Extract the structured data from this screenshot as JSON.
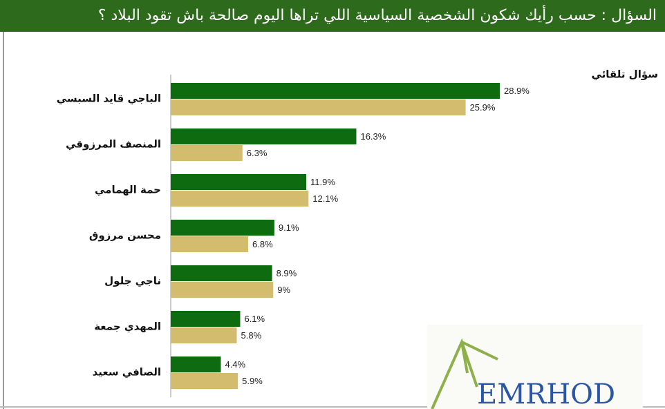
{
  "chart_data": {
    "type": "hbar",
    "title": "السؤال : حسب رأيك شكون الشخصية  السياسية اللي تراها اليوم صالحة باش تقود البلاد ؟",
    "subtitle": "سؤال تلقائي",
    "categories": [
      "الباجي قايد السبسي",
      "المنصف المرزوقي",
      "حمة الهمامي",
      "محسن مرزوق",
      "ناجي جلول",
      "المهدي جمعة",
      "الصافي سعيد"
    ],
    "series": [
      {
        "color": "#0f6b0f",
        "values": [
          28.9,
          16.3,
          11.9,
          9.1,
          8.9,
          6.1,
          4.4
        ],
        "value_labels": [
          "28.9%",
          "16.3%",
          "11.9%",
          "9.1%",
          "8.9%",
          "6.1%",
          "4.4%"
        ]
      },
      {
        "color": "#d4bc6e",
        "values": [
          25.9,
          6.3,
          12.1,
          6.8,
          9,
          5.8,
          5.9
        ],
        "value_labels": [
          "25.9%",
          "6.3%",
          "12.1%",
          "6.8%",
          "9%",
          "5.8%",
          "5.9%"
        ]
      }
    ],
    "logo": "EMRHOD"
  }
}
